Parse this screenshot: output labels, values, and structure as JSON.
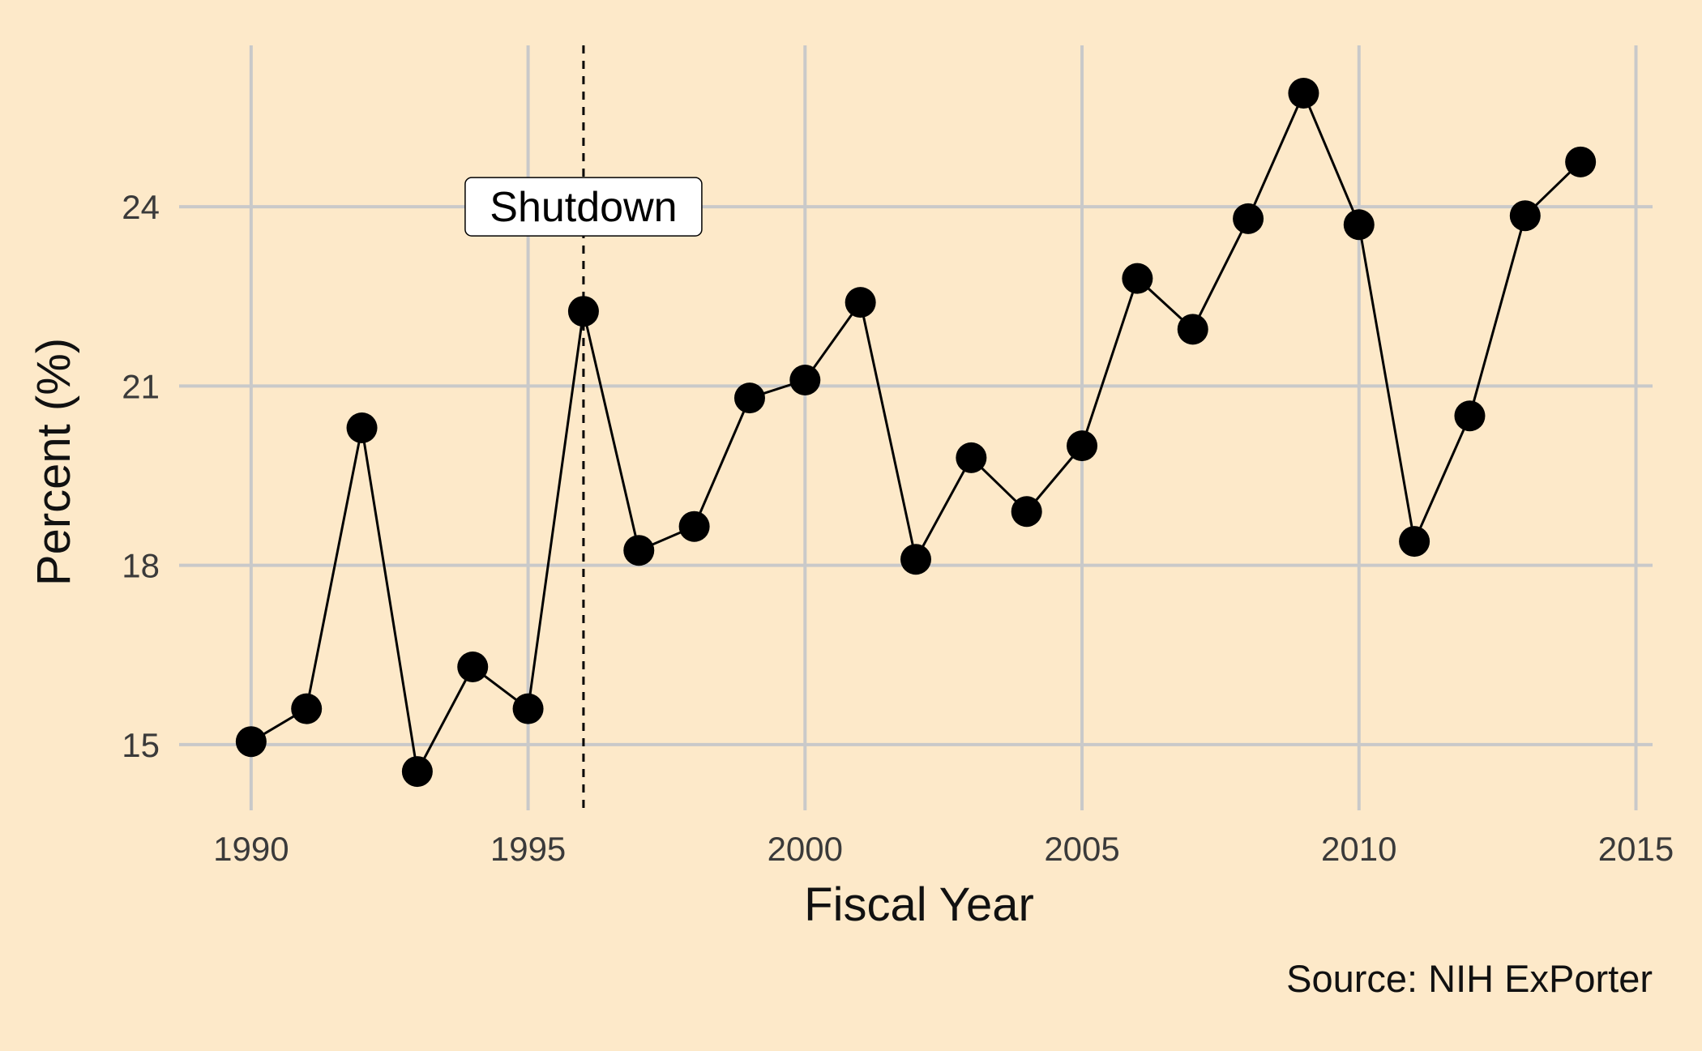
{
  "chart_data": {
    "type": "line",
    "title": "",
    "xlabel": "Fiscal Year",
    "ylabel": "Percent (%)",
    "caption": "Source: NIH ExPorter",
    "xlim": [
      1988.7,
      2015.3
    ],
    "ylim": [
      13.9,
      26.7
    ],
    "x_ticks": [
      1990,
      1995,
      2000,
      2005,
      2010,
      2015
    ],
    "y_ticks": [
      15,
      18,
      21,
      24
    ],
    "grid": true,
    "grid_color": "#c9c9c9",
    "background_color": "#fde9c9",
    "series": [
      {
        "color": "#000000",
        "markers": true,
        "x": [
          1990,
          1991,
          1992,
          1993,
          1994,
          1995,
          1996,
          1997,
          1998,
          1999,
          2000,
          2001,
          2002,
          2003,
          2004,
          2005,
          2006,
          2007,
          2008,
          2009,
          2010,
          2011,
          2012,
          2013,
          2014
        ],
        "y": [
          15.05,
          15.6,
          20.3,
          14.55,
          16.3,
          15.6,
          22.25,
          18.25,
          18.65,
          20.8,
          21.1,
          22.4,
          18.1,
          19.8,
          18.9,
          20.0,
          22.8,
          21.95,
          23.8,
          25.9,
          23.7,
          18.4,
          20.5,
          23.85,
          24.75
        ]
      }
    ],
    "annotations": [
      {
        "type": "vline",
        "x": 1996,
        "style": "dashed",
        "color": "#000000"
      },
      {
        "type": "label",
        "text": "Shutdown",
        "x": 1996,
        "y": 24
      }
    ]
  }
}
